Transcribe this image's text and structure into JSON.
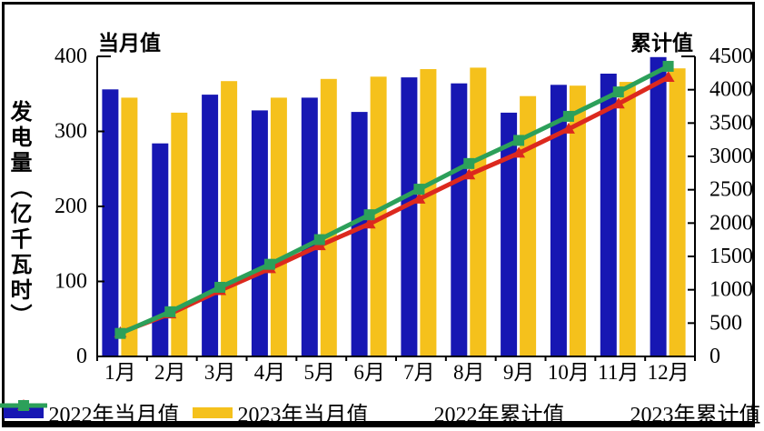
{
  "figure": {
    "left_axis_title": "当月值",
    "right_axis_title": "累计值",
    "y_axis_label": "发电量（亿千瓦时）"
  },
  "chart_data": {
    "type": "combo-bar-line",
    "categories": [
      "1月",
      "2月",
      "3月",
      "4月",
      "5月",
      "6月",
      "7月",
      "8月",
      "9月",
      "10月",
      "11月",
      "12月"
    ],
    "series": [
      {
        "name": "2022年当月值",
        "type": "bar",
        "axis": "left",
        "color": "#1717b3",
        "values": [
          356,
          284,
          349,
          328,
          345,
          326,
          372,
          364,
          325,
          362,
          377,
          399
        ]
      },
      {
        "name": "2023年当月值",
        "type": "bar",
        "axis": "left",
        "color": "#f5c11c",
        "values": [
          345,
          325,
          367,
          345,
          370,
          373,
          383,
          385,
          347,
          361,
          366,
          384
        ]
      },
      {
        "name": "2022年累计值",
        "type": "line",
        "axis": "right",
        "color": "#dc291e",
        "marker": "triangle",
        "values": [
          356,
          640,
          989,
          1317,
          1662,
          1988,
          2360,
          2724,
          3049,
          3411,
          3788,
          4187
        ]
      },
      {
        "name": "2023年累计值",
        "type": "line",
        "axis": "right",
        "color": "#2ca05a",
        "marker": "square",
        "values": [
          345,
          670,
          1037,
          1382,
          1752,
          2125,
          2508,
          2893,
          3240,
          3601,
          3967,
          4351
        ]
      }
    ],
    "left_axis": {
      "range": [
        0,
        400
      ],
      "ticks": [
        0,
        100,
        200,
        300,
        400
      ]
    },
    "right_axis": {
      "range": [
        0,
        4500
      ],
      "ticks": [
        0,
        500,
        1000,
        1500,
        2000,
        2500,
        3000,
        3500,
        4000,
        4500
      ]
    },
    "grid": "off",
    "legend_position": "bottom"
  }
}
